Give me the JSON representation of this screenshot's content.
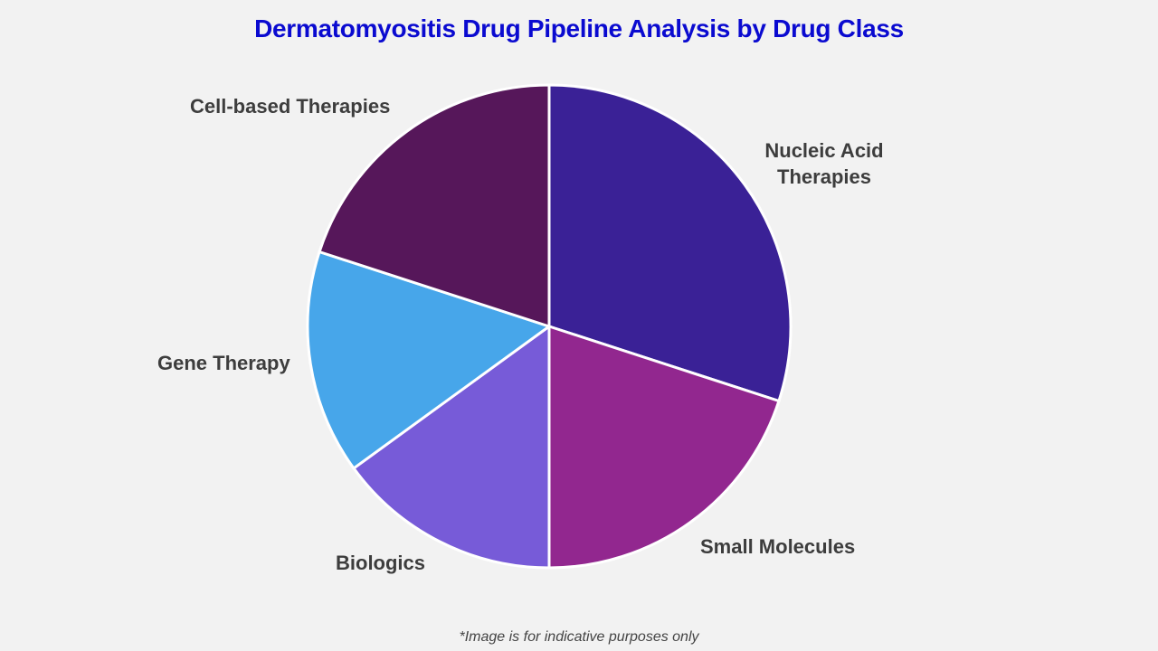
{
  "title": "Dermatomyositis Drug Pipeline Analysis by Drug Class",
  "footnote": "*Image is for indicative purposes only",
  "chart_data": {
    "type": "pie",
    "title": "Dermatomyositis Drug Pipeline Analysis by Drug Class",
    "categories": [
      "Nucleic Acid Therapies",
      "Small Molecules",
      "Biologics",
      "Gene Therapy",
      "Cell-based Therapies"
    ],
    "values": [
      30,
      20,
      15,
      15,
      20
    ],
    "colors": [
      "#3a2196",
      "#92278f",
      "#775bd8",
      "#47a6ea",
      "#56175a"
    ],
    "start_angle": "12 o'clock",
    "direction": "clockwise",
    "legend": "none (direct labels)"
  },
  "labels": {
    "nucleic": "Nucleic Acid\nTherapies",
    "nucleic_line1": "Nucleic Acid",
    "nucleic_line2": "Therapies",
    "small": "Small Molecules",
    "biologics": "Biologics",
    "gene": "Gene Therapy",
    "cell": "Cell-based Therapies"
  }
}
